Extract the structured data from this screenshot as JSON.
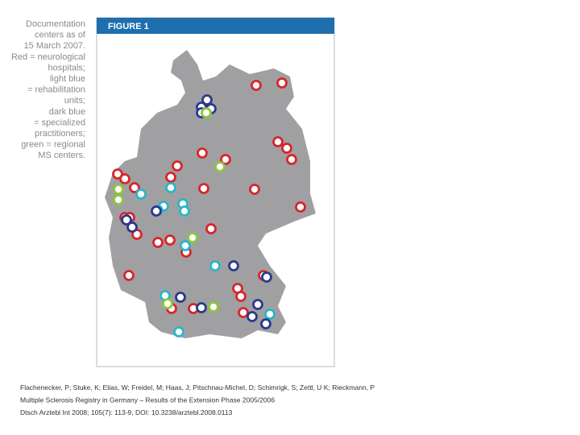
{
  "caption": {
    "lines": [
      "Documentation",
      "centers as of",
      "15 March 2007.",
      "Red = neurological",
      "hospitals;",
      "light blue",
      "= rehabilitation",
      "units;",
      "dark blue",
      "= specialized",
      "practitioners;",
      "green = regional",
      "MS centers."
    ]
  },
  "figure": {
    "label": "FIGURE 1"
  },
  "citation": {
    "lines": [
      "Flachenecker, P; Stuke, K; Elias, W; Freidel, M; Haas, J; Pitschnau-Michel, D; Schimrigk, S; Zettl, U K; Rieckmann, P",
      "Multiple Sclerosis Registry in Germany – Results of the Extension Phase 2005/2006",
      "Dtsch Arztebl Int 2008; 105(7): 113-9, DOI: 10.3238/arztebl.2008.0113"
    ]
  }
}
